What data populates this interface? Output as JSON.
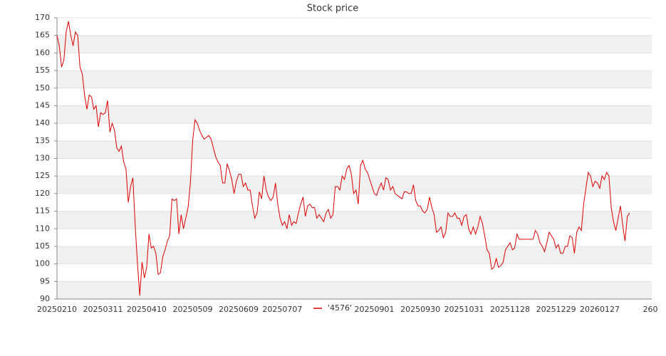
{
  "chart_data": {
    "type": "line",
    "title": "Stock price",
    "categories": [
      "20250210",
      null,
      null,
      null,
      null,
      null,
      null,
      null,
      null,
      null,
      null,
      null,
      null,
      null,
      null,
      null,
      null,
      null,
      null,
      null,
      "20250311",
      null,
      null,
      null,
      null,
      null,
      null,
      null,
      null,
      null,
      null,
      null,
      null,
      null,
      null,
      null,
      null,
      null,
      null,
      "20250410",
      null,
      null,
      null,
      null,
      null,
      null,
      null,
      null,
      null,
      null,
      null,
      null,
      null,
      null,
      null,
      null,
      null,
      null,
      null,
      "20250509",
      null,
      null,
      null,
      null,
      null,
      null,
      null,
      null,
      null,
      null,
      null,
      null,
      null,
      null,
      null,
      null,
      null,
      null,
      null,
      "20250609",
      null,
      null,
      null,
      null,
      null,
      null,
      null,
      null,
      null,
      null,
      null,
      null,
      null,
      null,
      null,
      null,
      null,
      null,
      "20250707",
      null,
      null,
      null,
      null,
      null,
      null,
      null,
      null,
      null,
      null,
      null,
      null,
      null,
      null,
      null,
      null,
      null,
      null,
      null,
      null,
      null,
      null,
      null,
      null,
      null,
      null,
      null,
      null,
      null,
      null,
      null,
      null,
      null,
      null,
      null,
      null,
      null,
      null,
      null,
      "20250901",
      null,
      null,
      null,
      null,
      null,
      null,
      null,
      null,
      null,
      null,
      null,
      null,
      null,
      null,
      null,
      null,
      null,
      null,
      null,
      "20250930",
      null,
      null,
      null,
      null,
      null,
      null,
      null,
      null,
      null,
      null,
      null,
      null,
      null,
      null,
      null,
      null,
      null,
      null,
      "20251031",
      null,
      null,
      null,
      null,
      null,
      null,
      null,
      null,
      null,
      null,
      null,
      null,
      null,
      null,
      null,
      null,
      null,
      null,
      null,
      "20251128",
      null,
      null,
      null,
      null,
      null,
      null,
      null,
      null,
      null,
      null,
      null,
      null,
      null,
      null,
      null,
      null,
      null,
      null,
      null,
      "20251229",
      null,
      null,
      null,
      null,
      null,
      null,
      null,
      null,
      null,
      null,
      null,
      null,
      null,
      null,
      null,
      null,
      null,
      null,
      "20260127",
      null,
      null,
      null,
      null,
      null,
      null,
      null,
      null,
      null,
      null,
      null,
      null,
      null,
      null,
      null,
      null,
      null,
      null,
      null,
      null,
      null,
      "260"
    ],
    "series": [
      {
        "name": "'4576'",
        "color": "#dd0000",
        "values": [
          165,
          162,
          156,
          158,
          166,
          169,
          165,
          162,
          166,
          165,
          156,
          154,
          148,
          144,
          148,
          147.5,
          144,
          145,
          139,
          143,
          142.5,
          143,
          146.5,
          137.5,
          140,
          138,
          133,
          132,
          133.5,
          129,
          127,
          117.5,
          122,
          124.5,
          111,
          100,
          91,
          100.5,
          96,
          99,
          108.5,
          104.5,
          105,
          103,
          97,
          97.5,
          102,
          104,
          106.5,
          108,
          118.5,
          118,
          118.5,
          108.5,
          114,
          110,
          113,
          116,
          123,
          135,
          141,
          140,
          138,
          136.5,
          135.5,
          136,
          136.5,
          135.5,
          133,
          130.5,
          129,
          128,
          123,
          123,
          128.5,
          126.5,
          124,
          120,
          123.5,
          125.5,
          125.5,
          122,
          123,
          121,
          121,
          116.5,
          113,
          114.5,
          120.5,
          118.5,
          125,
          121,
          119,
          118,
          119,
          123,
          117,
          113,
          111,
          112,
          110,
          114,
          111,
          112,
          111.5,
          114.5,
          117,
          119,
          113.5,
          116.5,
          117,
          116,
          116,
          113,
          114,
          113,
          112,
          114.5,
          115.5,
          113,
          114,
          122,
          122,
          121,
          125,
          124,
          127,
          128,
          125.5,
          120,
          121,
          117,
          128,
          129.5,
          127,
          126,
          124,
          122,
          120,
          119.5,
          121.5,
          123,
          121,
          124.5,
          124,
          121,
          122,
          120,
          119.5,
          119,
          118.5,
          120.5,
          120.5,
          120,
          120,
          122.5,
          118,
          116.5,
          116.5,
          115,
          114.5,
          115.5,
          119,
          116,
          114,
          109,
          109.5,
          110.5,
          107.5,
          109,
          114.5,
          113.5,
          113.5,
          114.5,
          113,
          113,
          111,
          113.5,
          114,
          110,
          108.5,
          110.5,
          108.5,
          110.5,
          113.5,
          111.5,
          108,
          104,
          103,
          98.5,
          99,
          101.5,
          99,
          99.5,
          100.5,
          104,
          105,
          106,
          104,
          104.5,
          108.5,
          107,
          107,
          107,
          107,
          107,
          107,
          107,
          109.5,
          108.5,
          106,
          105,
          103.5,
          106,
          109,
          108,
          107,
          104.5,
          105.5,
          103,
          103,
          105,
          105,
          108,
          107.5,
          103,
          109,
          110.5,
          109.5,
          117,
          121.5,
          126,
          125,
          122,
          123.5,
          123,
          121.5,
          125,
          124,
          126,
          125,
          116,
          112,
          109.5,
          113,
          116.5,
          111,
          106.5,
          113.5,
          114.5,
          null,
          null,
          null,
          null,
          null,
          null,
          null,
          null,
          null
        ]
      }
    ],
    "ylim": [
      90,
      170
    ],
    "yticks": [
      90,
      95,
      100,
      105,
      110,
      115,
      120,
      125,
      130,
      135,
      140,
      145,
      150,
      155,
      160,
      165,
      170
    ],
    "grid": true,
    "legend": "bottom"
  }
}
